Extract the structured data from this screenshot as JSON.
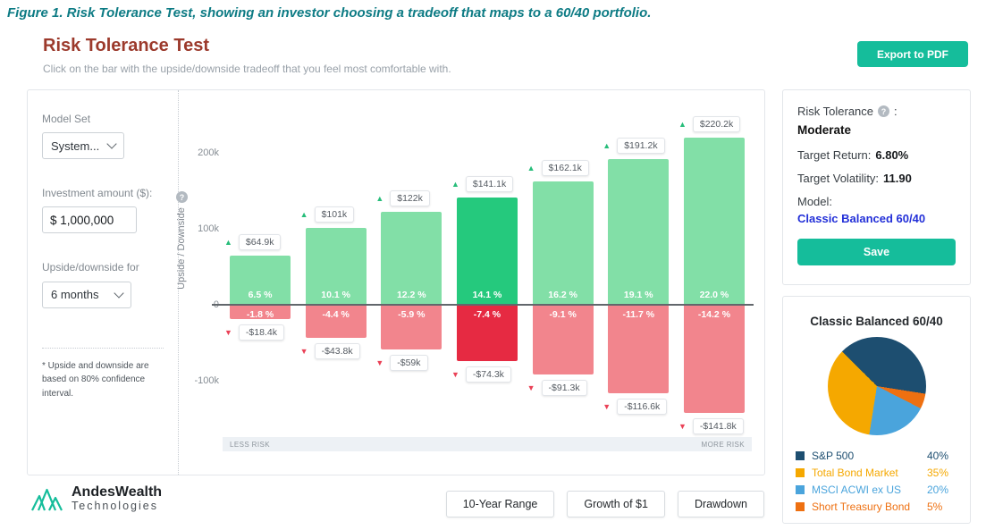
{
  "figure_caption": "Figure 1. Risk Tolerance Test, showing an investor choosing a tradeoff that maps to a 60/40 portfolio.",
  "icons": {
    "help": "?",
    "up_arrow": "▲",
    "down_arrow": "▼"
  },
  "header": {
    "title": "Risk Tolerance Test",
    "subtitle": "Click on the bar with the upside/downside tradeoff that you feel most comfortable with.",
    "export_button_label": "Export to PDF"
  },
  "controls": {
    "model_set_label": "Model Set",
    "model_set_value": "System...",
    "investment_label": "Investment amount ($):",
    "investment_value": "$ 1,000,000",
    "period_label": "Upside/downside for",
    "period_value": "6 months",
    "footnote": "* Upside and downside are based on 80% confidence interval."
  },
  "chart_data": {
    "type": "bar",
    "ylabel": "Upside / Downside",
    "yticks": [
      "200k",
      "100k",
      "0",
      "-100k"
    ],
    "ytick_values": [
      200000,
      100000,
      0,
      -100000
    ],
    "ylim": [
      -165000,
      245000
    ],
    "x_left_label": "LESS RISK",
    "x_right_label": "MORE RISK",
    "selected_index": 3,
    "series": [
      {
        "name": "Upside",
        "values": [
          64900,
          101000,
          122000,
          141100,
          162100,
          191200,
          220200
        ]
      },
      {
        "name": "Downside",
        "values": [
          -18400,
          -43800,
          -59000,
          -74300,
          -91300,
          -116600,
          -141800
        ]
      }
    ],
    "bars": [
      {
        "upside_label": "$64.9k",
        "upside_pct": "6.5 %",
        "downside_label": "-$18.4k",
        "downside_pct": "-1.8 %"
      },
      {
        "upside_label": "$101k",
        "upside_pct": "10.1 %",
        "downside_label": "-$43.8k",
        "downside_pct": "-4.4 %"
      },
      {
        "upside_label": "$122k",
        "upside_pct": "12.2 %",
        "downside_label": "-$59k",
        "downside_pct": "-5.9 %"
      },
      {
        "upside_label": "$141.1k",
        "upside_pct": "14.1 %",
        "downside_label": "-$74.3k",
        "downside_pct": "-7.4 %"
      },
      {
        "upside_label": "$162.1k",
        "upside_pct": "16.2 %",
        "downside_label": "-$91.3k",
        "downside_pct": "-9.1 %"
      },
      {
        "upside_label": "$191.2k",
        "upside_pct": "19.1 %",
        "downside_label": "-$116.6k",
        "downside_pct": "-11.7 %"
      },
      {
        "upside_label": "$220.2k",
        "upside_pct": "22.0 %",
        "downside_label": "-$141.8k",
        "downside_pct": "-14.2 %"
      }
    ]
  },
  "summary": {
    "risk_tolerance_label": "Risk Tolerance",
    "colon": ":",
    "risk_tolerance_value": "Moderate",
    "target_return_label": "Target Return:",
    "target_return_value": "6.80%",
    "target_volatility_label": "Target Volatility:",
    "target_volatility_value": "11.90",
    "model_label": "Model:",
    "model_value": "Classic Balanced 60/40",
    "save_button_label": "Save"
  },
  "portfolio": {
    "title": "Classic Balanced 60/40",
    "pie_start_angle_deg": 315,
    "draw_order": [
      0,
      3,
      2,
      1
    ],
    "slices": [
      {
        "label": "S&P 500",
        "pct": "40%",
        "value": 40,
        "color": "#1d4e70"
      },
      {
        "label": "Total Bond Market",
        "pct": "35%",
        "value": 35,
        "color": "#f5a800"
      },
      {
        "label": "MSCI ACWI ex US",
        "pct": "20%",
        "value": 20,
        "color": "#4aa4dc"
      },
      {
        "label": "Short Treasury Bond",
        "pct": "5%",
        "value": 5,
        "color": "#ee7011"
      }
    ]
  },
  "footer": {
    "brand_line1": "AndesWealth",
    "brand_line2": "Technologies",
    "buttons": [
      "10-Year Range",
      "Growth of $1",
      "Drawdown"
    ]
  }
}
